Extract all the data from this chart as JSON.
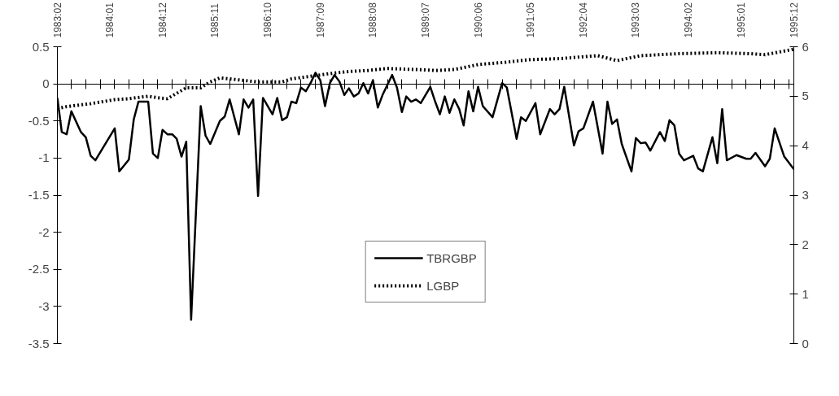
{
  "chart_data": {
    "type": "line",
    "xlim": [
      "1983-02",
      "1995-12"
    ],
    "xticks": [
      {
        "value": "1983-02",
        "label": "1983:02"
      },
      {
        "value": "1984-01",
        "label": "1984:01"
      },
      {
        "value": "1984-12",
        "label": "1984:12"
      },
      {
        "value": "1985-11",
        "label": "1985:11"
      },
      {
        "value": "1986-10",
        "label": "1986:10"
      },
      {
        "value": "1987-09",
        "label": "1987:09"
      },
      {
        "value": "1988-08",
        "label": "1988:08"
      },
      {
        "value": "1989-07",
        "label": "1989:07"
      },
      {
        "value": "1990-06",
        "label": "1990:06"
      },
      {
        "value": "1991-05",
        "label": "1991:05"
      },
      {
        "value": "1992-04",
        "label": "1992:04"
      },
      {
        "value": "1993-03",
        "label": "1993:03"
      },
      {
        "value": "1994-02",
        "label": "1994:02"
      },
      {
        "value": "1995-01",
        "label": "1995:01"
      },
      {
        "value": "1995-12",
        "label": "1995:12"
      }
    ],
    "ylim": [
      -3.5,
      0.5
    ],
    "yticks": [
      0.5,
      0,
      -0.5,
      -1,
      -1.5,
      -2,
      -2.5,
      -3,
      -3.5
    ],
    "y2lim": [
      0,
      6
    ],
    "y2ticks": [
      0,
      1,
      2,
      3,
      4,
      5,
      6
    ],
    "grid": false,
    "legend": "bottom",
    "marker": "none",
    "ref_lines": [
      {
        "axis": "y",
        "value": 0,
        "label": null
      }
    ],
    "series": [
      {
        "name": "TBRGBP",
        "color": "#000000",
        "line_style": "solid",
        "x": [
          "1983-02",
          "1983-03",
          "1983-04",
          "1983-05",
          "1983-07",
          "1983-08",
          "1983-09",
          "1983-10",
          "1984-02",
          "1984-03",
          "1984-05",
          "1984-06",
          "1984-07",
          "1984-09",
          "1984-10",
          "1984-11",
          "1984-12",
          "1985-01",
          "1985-02",
          "1985-03",
          "1985-04",
          "1985-05",
          "1985-06",
          "1985-08",
          "1985-09",
          "1985-10",
          "1985-12",
          "1986-01",
          "1986-02",
          "1986-04",
          "1986-05",
          "1986-06",
          "1986-07",
          "1986-08",
          "1986-09",
          "1986-11",
          "1986-12",
          "1987-01",
          "1987-02",
          "1987-03",
          "1987-04",
          "1987-05",
          "1987-06",
          "1987-07",
          "1987-08",
          "1987-09",
          "1987-10",
          "1987-11",
          "1987-12",
          "1988-01",
          "1988-02",
          "1988-03",
          "1988-04",
          "1988-05",
          "1988-06",
          "1988-07",
          "1988-08",
          "1988-09",
          "1988-10",
          "1988-12",
          "1989-01",
          "1989-02",
          "1989-03",
          "1989-04",
          "1989-05",
          "1989-06",
          "1989-08",
          "1989-09",
          "1989-10",
          "1989-11",
          "1989-12",
          "1990-01",
          "1990-02",
          "1990-03",
          "1990-04",
          "1990-05",
          "1990-06",
          "1990-07",
          "1990-09",
          "1990-11",
          "1990-12",
          "1991-02",
          "1991-03",
          "1991-04",
          "1991-06",
          "1991-07",
          "1991-09",
          "1991-10",
          "1991-11",
          "1991-12",
          "1992-02",
          "1992-03",
          "1992-04",
          "1992-06",
          "1992-08",
          "1992-09",
          "1992-10",
          "1992-11",
          "1992-12",
          "1993-02",
          "1993-03",
          "1993-04",
          "1993-05",
          "1993-06",
          "1993-08",
          "1993-09",
          "1993-10",
          "1993-11",
          "1993-12",
          "1994-01",
          "1994-03",
          "1994-04",
          "1994-05",
          "1994-07",
          "1994-08",
          "1994-09",
          "1994-10",
          "1994-12",
          "1995-02",
          "1995-03",
          "1995-04",
          "1995-06",
          "1995-07",
          "1995-08",
          "1995-10",
          "1995-12"
        ],
        "values": [
          -0.19,
          -0.65,
          -0.68,
          -0.37,
          -0.65,
          -0.72,
          -0.97,
          -1.03,
          -0.6,
          -1.18,
          -1.02,
          -0.48,
          -0.24,
          -0.24,
          -0.94,
          -1.0,
          -0.62,
          -0.68,
          -0.68,
          -0.74,
          -0.98,
          -0.78,
          -3.18,
          -0.3,
          -0.7,
          -0.81,
          -0.5,
          -0.44,
          -0.21,
          -0.68,
          -0.21,
          -0.32,
          -0.21,
          -1.51,
          -0.19,
          -0.41,
          -0.19,
          -0.49,
          -0.45,
          -0.24,
          -0.26,
          -0.05,
          -0.1,
          0.01,
          0.15,
          0.05,
          -0.3,
          0.01,
          0.12,
          0.03,
          -0.15,
          -0.06,
          -0.17,
          -0.13,
          0.01,
          -0.13,
          0.05,
          -0.32,
          -0.15,
          0.12,
          -0.05,
          -0.38,
          -0.17,
          -0.24,
          -0.21,
          -0.26,
          -0.04,
          -0.24,
          -0.41,
          -0.17,
          -0.39,
          -0.21,
          -0.34,
          -0.56,
          -0.1,
          -0.37,
          -0.04,
          -0.3,
          -0.45,
          0.01,
          -0.05,
          -0.74,
          -0.45,
          -0.5,
          -0.26,
          -0.68,
          -0.34,
          -0.41,
          -0.34,
          -0.04,
          -0.83,
          -0.64,
          -0.6,
          -0.24,
          -0.94,
          -0.24,
          -0.54,
          -0.48,
          -0.81,
          -1.18,
          -0.73,
          -0.8,
          -0.79,
          -0.9,
          -0.65,
          -0.77,
          -0.49,
          -0.56,
          -0.94,
          -1.03,
          -0.97,
          -1.14,
          -1.18,
          -0.72,
          -1.07,
          -0.34,
          -1.03,
          -0.96,
          -1.01,
          -1.01,
          -0.93,
          -1.11,
          -1.01,
          -0.6,
          -0.98,
          -1.15
        ]
      },
      {
        "name": "LGBP",
        "color": "#000000",
        "line_style": "dotted",
        "axis": "y2",
        "x": [
          "1983-02",
          "1983-04",
          "1983-09",
          "1984-02",
          "1984-05",
          "1984-09",
          "1984-11",
          "1985-01",
          "1985-05",
          "1985-08",
          "1985-10",
          "1985-12",
          "1986-04",
          "1986-08",
          "1987-01",
          "1987-03",
          "1987-06",
          "1987-12",
          "1988-03",
          "1988-07",
          "1988-11",
          "1989-05",
          "1989-09",
          "1990-01",
          "1990-06",
          "1990-11",
          "1991-05",
          "1991-11",
          "1992-07",
          "1992-11",
          "1993-04",
          "1993-12",
          "1994-08",
          "1995-03",
          "1995-06",
          "1995-12"
        ],
        "values": [
          4.75,
          4.79,
          4.85,
          4.93,
          4.95,
          5.0,
          4.97,
          4.95,
          5.17,
          5.17,
          5.29,
          5.37,
          5.33,
          5.29,
          5.29,
          5.35,
          5.39,
          5.47,
          5.5,
          5.52,
          5.56,
          5.54,
          5.52,
          5.54,
          5.64,
          5.68,
          5.74,
          5.76,
          5.82,
          5.72,
          5.82,
          5.86,
          5.88,
          5.86,
          5.84,
          5.95
        ]
      }
    ]
  }
}
